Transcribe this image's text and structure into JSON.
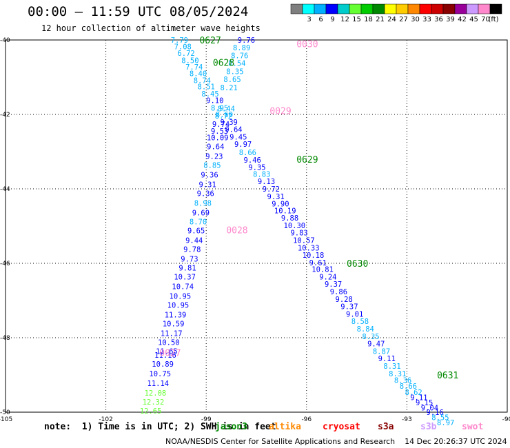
{
  "header": {
    "title": "00:00 – 11:59 UTC 08/05/2024",
    "subtitle": "12 hour collection of altimeter wave heights"
  },
  "colorbar": {
    "unit": "(ft)",
    "bins": [
      {
        "color": "#7f7f7f",
        "label": ""
      },
      {
        "color": "#00ffff",
        "label": "3"
      },
      {
        "color": "#00b0ff",
        "label": "6"
      },
      {
        "color": "#0000ff",
        "label": "9"
      },
      {
        "color": "#00cccc",
        "label": "12"
      },
      {
        "color": "#66ff33",
        "label": "15"
      },
      {
        "color": "#00cc00",
        "label": "18"
      },
      {
        "color": "#008800",
        "label": "21"
      },
      {
        "color": "#ffff00",
        "label": "24"
      },
      {
        "color": "#ffcc00",
        "label": "27"
      },
      {
        "color": "#ff8800",
        "label": "30"
      },
      {
        "color": "#ff0000",
        "label": "33"
      },
      {
        "color": "#cc0000",
        "label": "36"
      },
      {
        "color": "#880000",
        "label": "39"
      },
      {
        "color": "#990099",
        "label": "42"
      },
      {
        "color": "#cc99ff",
        "label": "45"
      },
      {
        "color": "#ff88cc",
        "label": "70"
      },
      {
        "color": "#000000",
        "label": ""
      }
    ]
  },
  "footer": {
    "note": "note:  1) Time is in UTC; 2) SWH is in feet",
    "credit": "NOAA/NESDIS Center for Satellite Applications and Research    14 Dec 20:26:37 UTC 2024",
    "satellites": [
      {
        "name": "jason3",
        "color": "#008800"
      },
      {
        "name": "altika",
        "color": "#ff8800"
      },
      {
        "name": "cryosat",
        "color": "#ff0000"
      },
      {
        "name": "s3a",
        "color": "#880000"
      },
      {
        "name": "s3b",
        "color": "#cc99ff"
      },
      {
        "name": "swot",
        "color": "#ff88cc"
      }
    ]
  },
  "chart_data": {
    "type": "scatter",
    "title": "00:00 – 11:59 UTC 08/05/2024",
    "subtitle": "12 hour collection of altimeter wave heights",
    "xlabel": "",
    "ylabel": "",
    "xlim": [
      -105,
      -90
    ],
    "ylim": [
      -50,
      -40
    ],
    "xticks": [
      -105,
      -102,
      -99,
      -96,
      -93,
      -90
    ],
    "yticks": [
      -40,
      -42,
      -44,
      -46,
      -48,
      -50
    ],
    "grid": true,
    "time_labels": [
      {
        "text": "0627",
        "lon": -99.2,
        "lat": -40.0,
        "color": "#008800"
      },
      {
        "text": "0628",
        "lon": -98.8,
        "lat": -40.6,
        "color": "#008800"
      },
      {
        "text": "0629",
        "lon": -96.3,
        "lat": -43.2,
        "color": "#008800"
      },
      {
        "text": "0630",
        "lon": -94.8,
        "lat": -46.0,
        "color": "#008800"
      },
      {
        "text": "0631",
        "lon": -92.1,
        "lat": -49.0,
        "color": "#008800"
      },
      {
        "text": "0030",
        "lon": -96.3,
        "lat": -40.1,
        "color": "#ff88cc"
      },
      {
        "text": "0029",
        "lon": -97.1,
        "lat": -41.9,
        "color": "#ff88cc"
      },
      {
        "text": "0028",
        "lon": -98.4,
        "lat": -45.1,
        "color": "#ff88cc"
      },
      {
        "text": "0027",
        "lon": -100.4,
        "lat": -48.4,
        "color": "#ff88cc"
      }
    ],
    "points": [
      {
        "lon": -99.8,
        "lat": -40.0,
        "swh": 7.79,
        "color": "#00b0ff"
      },
      {
        "lon": -99.7,
        "lat": -40.18,
        "swh": 7.08,
        "color": "#00b0ff"
      },
      {
        "lon": -99.6,
        "lat": -40.35,
        "swh": 6.72,
        "color": "#00b0ff"
      },
      {
        "lon": -99.48,
        "lat": -40.55,
        "swh": 8.5,
        "color": "#00b0ff"
      },
      {
        "lon": -99.36,
        "lat": -40.72,
        "swh": 7.74,
        "color": "#00b0ff"
      },
      {
        "lon": -99.24,
        "lat": -40.9,
        "swh": 8.4,
        "color": "#00b0ff"
      },
      {
        "lon": -99.12,
        "lat": -41.08,
        "swh": 8.74,
        "color": "#00b0ff"
      },
      {
        "lon": -99.0,
        "lat": -41.25,
        "swh": 8.51,
        "color": "#00b0ff"
      },
      {
        "lon": -98.88,
        "lat": -41.44,
        "swh": 8.45,
        "color": "#00b0ff"
      },
      {
        "lon": -98.74,
        "lat": -41.62,
        "swh": 9.1,
        "color": "#0000ff"
      },
      {
        "lon": -98.6,
        "lat": -41.82,
        "swh": 8.95,
        "color": "#00b0ff"
      },
      {
        "lon": -98.46,
        "lat": -42.0,
        "swh": 8.6,
        "color": "#00b0ff"
      },
      {
        "lon": -98.32,
        "lat": -42.2,
        "swh": 9.39,
        "color": "#0000ff"
      },
      {
        "lon": -98.18,
        "lat": -42.4,
        "swh": 9.64,
        "color": "#0000ff"
      },
      {
        "lon": -98.04,
        "lat": -42.6,
        "swh": 9.45,
        "color": "#0000ff"
      },
      {
        "lon": -97.9,
        "lat": -42.8,
        "swh": 9.97,
        "color": "#0000ff"
      },
      {
        "lon": -97.76,
        "lat": -43.02,
        "swh": 8.66,
        "color": "#00b0ff"
      },
      {
        "lon": -97.62,
        "lat": -43.22,
        "swh": 9.46,
        "color": "#0000ff"
      },
      {
        "lon": -97.48,
        "lat": -43.42,
        "swh": 9.35,
        "color": "#0000ff"
      },
      {
        "lon": -97.34,
        "lat": -43.6,
        "swh": 8.83,
        "color": "#00b0ff"
      },
      {
        "lon": -97.2,
        "lat": -43.8,
        "swh": 9.13,
        "color": "#0000ff"
      },
      {
        "lon": -97.06,
        "lat": -44.0,
        "swh": 9.72,
        "color": "#0000ff"
      },
      {
        "lon": -96.92,
        "lat": -44.2,
        "swh": 9.31,
        "color": "#0000ff"
      },
      {
        "lon": -96.78,
        "lat": -44.4,
        "swh": 9.9,
        "color": "#0000ff"
      },
      {
        "lon": -96.64,
        "lat": -44.58,
        "swh": 10.19,
        "color": "#0000ff"
      },
      {
        "lon": -96.5,
        "lat": -44.78,
        "swh": 9.88,
        "color": "#0000ff"
      },
      {
        "lon": -96.36,
        "lat": -44.98,
        "swh": 10.3,
        "color": "#0000ff"
      },
      {
        "lon": -96.22,
        "lat": -45.18,
        "swh": 9.83,
        "color": "#0000ff"
      },
      {
        "lon": -96.08,
        "lat": -45.38,
        "swh": 10.57,
        "color": "#0000ff"
      },
      {
        "lon": -95.94,
        "lat": -45.58,
        "swh": 10.33,
        "color": "#0000ff"
      },
      {
        "lon": -95.8,
        "lat": -45.78,
        "swh": 10.18,
        "color": "#0000ff"
      },
      {
        "lon": -95.66,
        "lat": -45.98,
        "swh": 9.61,
        "color": "#0000ff"
      },
      {
        "lon": -95.52,
        "lat": -46.16,
        "swh": 10.81,
        "color": "#0000ff"
      },
      {
        "lon": -95.36,
        "lat": -46.36,
        "swh": 9.24,
        "color": "#0000ff"
      },
      {
        "lon": -95.2,
        "lat": -46.56,
        "swh": 9.37,
        "color": "#0000ff"
      },
      {
        "lon": -95.04,
        "lat": -46.76,
        "swh": 9.86,
        "color": "#0000ff"
      },
      {
        "lon": -94.88,
        "lat": -46.96,
        "swh": 9.28,
        "color": "#0000ff"
      },
      {
        "lon": -94.72,
        "lat": -47.16,
        "swh": 9.37,
        "color": "#0000ff"
      },
      {
        "lon": -94.56,
        "lat": -47.36,
        "swh": 9.01,
        "color": "#0000ff"
      },
      {
        "lon": -94.4,
        "lat": -47.56,
        "swh": 8.58,
        "color": "#00b0ff"
      },
      {
        "lon": -94.24,
        "lat": -47.76,
        "swh": 8.84,
        "color": "#00b0ff"
      },
      {
        "lon": -94.08,
        "lat": -47.96,
        "swh": 8.35,
        "color": "#00b0ff"
      },
      {
        "lon": -93.92,
        "lat": -48.16,
        "swh": 9.47,
        "color": "#0000ff"
      },
      {
        "lon": -93.76,
        "lat": -48.36,
        "swh": 8.87,
        "color": "#00b0ff"
      },
      {
        "lon": -93.6,
        "lat": -48.56,
        "swh": 9.11,
        "color": "#0000ff"
      },
      {
        "lon": -93.44,
        "lat": -48.76,
        "swh": 8.31,
        "color": "#00b0ff"
      },
      {
        "lon": -93.28,
        "lat": -48.96,
        "swh": 8.31,
        "color": "#00b0ff"
      },
      {
        "lon": -93.12,
        "lat": -49.14,
        "swh": 8.36,
        "color": "#00b0ff"
      },
      {
        "lon": -92.96,
        "lat": -49.3,
        "swh": 8.66,
        "color": "#00b0ff"
      },
      {
        "lon": -92.8,
        "lat": -49.46,
        "swh": 8.62,
        "color": "#00b0ff"
      },
      {
        "lon": -92.64,
        "lat": -49.6,
        "swh": 9.11,
        "color": "#0000ff"
      },
      {
        "lon": -92.48,
        "lat": -49.74,
        "swh": 9.15,
        "color": "#0000ff"
      },
      {
        "lon": -92.32,
        "lat": -49.88,
        "swh": 9.04,
        "color": "#0000ff"
      },
      {
        "lon": -92.16,
        "lat": -50.0,
        "swh": 9.16,
        "color": "#0000ff"
      },
      {
        "lon": -92.0,
        "lat": -50.14,
        "swh": 8.55,
        "color": "#00b0ff"
      },
      {
        "lon": -91.84,
        "lat": -50.28,
        "swh": 8.97,
        "color": "#00b0ff"
      },
      {
        "lon": -97.8,
        "lat": -40.0,
        "swh": 9.76,
        "color": "#0000ff"
      },
      {
        "lon": -97.94,
        "lat": -40.2,
        "swh": 8.89,
        "color": "#00b0ff"
      },
      {
        "lon": -98.0,
        "lat": -40.42,
        "swh": 8.76,
        "color": "#00b0ff"
      },
      {
        "lon": -98.08,
        "lat": -40.62,
        "swh": 8.54,
        "color": "#00b0ff"
      },
      {
        "lon": -98.14,
        "lat": -40.84,
        "swh": 8.35,
        "color": "#00b0ff"
      },
      {
        "lon": -98.22,
        "lat": -41.06,
        "swh": 8.65,
        "color": "#00b0ff"
      },
      {
        "lon": -98.32,
        "lat": -41.28,
        "swh": 8.21,
        "color": "#00b0ff"
      },
      {
        "lon": -98.4,
        "lat": -41.84,
        "swh": 8.44,
        "color": "#00b0ff"
      },
      {
        "lon": -98.48,
        "lat": -42.04,
        "swh": 8.72,
        "color": "#00b0ff"
      },
      {
        "lon": -98.56,
        "lat": -42.26,
        "swh": 9.74,
        "color": "#0000ff"
      },
      {
        "lon": -98.6,
        "lat": -42.44,
        "swh": 9.53,
        "color": "#0000ff"
      },
      {
        "lon": -98.66,
        "lat": -42.62,
        "swh": 10.09,
        "color": "#0000ff"
      },
      {
        "lon": -98.72,
        "lat": -42.86,
        "swh": 9.64,
        "color": "#0000ff"
      },
      {
        "lon": -98.76,
        "lat": -43.12,
        "swh": 9.23,
        "color": "#0000ff"
      },
      {
        "lon": -98.82,
        "lat": -43.36,
        "swh": 8.85,
        "color": "#00b0ff"
      },
      {
        "lon": -98.9,
        "lat": -43.62,
        "swh": 9.36,
        "color": "#0000ff"
      },
      {
        "lon": -98.96,
        "lat": -43.88,
        "swh": 9.31,
        "color": "#0000ff"
      },
      {
        "lon": -99.02,
        "lat": -44.12,
        "swh": 9.36,
        "color": "#0000ff"
      },
      {
        "lon": -99.1,
        "lat": -44.38,
        "swh": 8.98,
        "color": "#00b0ff"
      },
      {
        "lon": -99.16,
        "lat": -44.64,
        "swh": 9.69,
        "color": "#0000ff"
      },
      {
        "lon": -99.24,
        "lat": -44.88,
        "swh": 8.7,
        "color": "#00b0ff"
      },
      {
        "lon": -99.3,
        "lat": -45.12,
        "swh": 9.65,
        "color": "#0000ff"
      },
      {
        "lon": -99.36,
        "lat": -45.38,
        "swh": 9.44,
        "color": "#0000ff"
      },
      {
        "lon": -99.42,
        "lat": -45.62,
        "swh": 9.78,
        "color": "#0000ff"
      },
      {
        "lon": -99.5,
        "lat": -45.88,
        "swh": 9.73,
        "color": "#0000ff"
      },
      {
        "lon": -99.56,
        "lat": -46.12,
        "swh": 9.81,
        "color": "#0000ff"
      },
      {
        "lon": -99.64,
        "lat": -46.36,
        "swh": 10.37,
        "color": "#0000ff"
      },
      {
        "lon": -99.7,
        "lat": -46.62,
        "swh": 10.74,
        "color": "#0000ff"
      },
      {
        "lon": -99.78,
        "lat": -46.88,
        "swh": 10.95,
        "color": "#0000ff"
      },
      {
        "lon": -99.84,
        "lat": -47.12,
        "swh": 10.95,
        "color": "#0000ff"
      },
      {
        "lon": -99.92,
        "lat": -47.38,
        "swh": 11.39,
        "color": "#0000ff"
      },
      {
        "lon": -99.98,
        "lat": -47.62,
        "swh": 10.59,
        "color": "#0000ff"
      },
      {
        "lon": -100.04,
        "lat": -47.88,
        "swh": 11.17,
        "color": "#0000ff"
      },
      {
        "lon": -100.12,
        "lat": -48.12,
        "swh": 10.5,
        "color": "#0000ff"
      },
      {
        "lon": -100.18,
        "lat": -48.36,
        "swh": 11.65,
        "color": "#0000ff"
      },
      {
        "lon": -100.22,
        "lat": -48.46,
        "swh": 11.16,
        "color": "#0000ff"
      },
      {
        "lon": -100.3,
        "lat": -48.7,
        "swh": 10.89,
        "color": "#0000ff"
      },
      {
        "lon": -100.38,
        "lat": -48.96,
        "swh": 10.75,
        "color": "#0000ff"
      },
      {
        "lon": -100.44,
        "lat": -49.22,
        "swh": 11.14,
        "color": "#0000ff"
      },
      {
        "lon": -100.52,
        "lat": -49.48,
        "swh": 12.08,
        "color": "#66ff33"
      },
      {
        "lon": -100.58,
        "lat": -49.72,
        "swh": 12.32,
        "color": "#66ff33"
      },
      {
        "lon": -100.66,
        "lat": -49.96,
        "swh": 12.65,
        "color": "#66ff33"
      }
    ]
  }
}
